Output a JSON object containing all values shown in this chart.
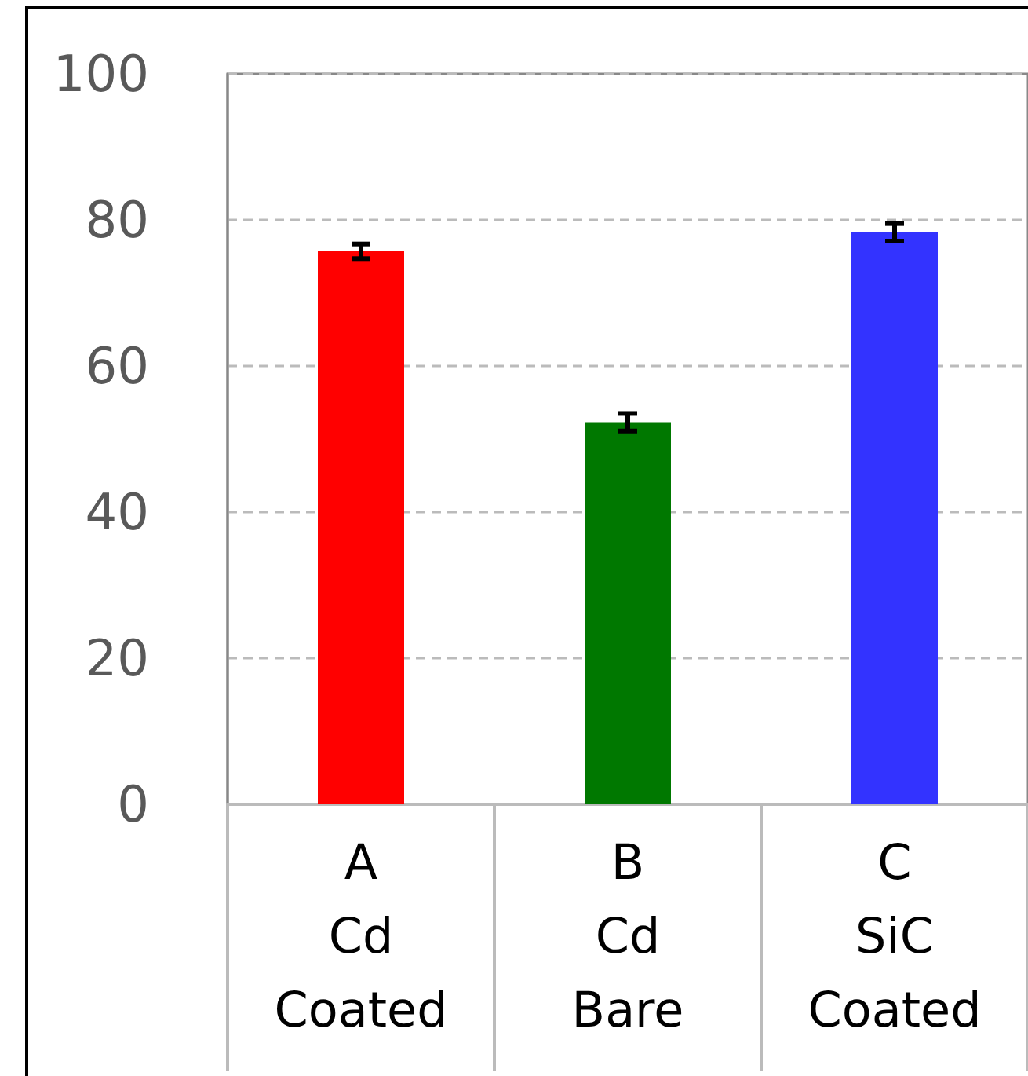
{
  "chart_data": {
    "type": "bar",
    "categories": [
      "A\nCd\nCoated",
      "B\nCd\nBare",
      "C\nSiC\nCoated"
    ],
    "values": [
      75.7,
      52.3,
      78.3
    ],
    "colors": [
      "#ff0000",
      "#007800",
      "#3333ff"
    ],
    "errors": [
      1,
      1.2,
      1.2
    ],
    "ylim": [
      0,
      100
    ],
    "yticks": [
      0,
      20,
      40,
      60,
      80,
      100
    ],
    "grid": "y"
  }
}
